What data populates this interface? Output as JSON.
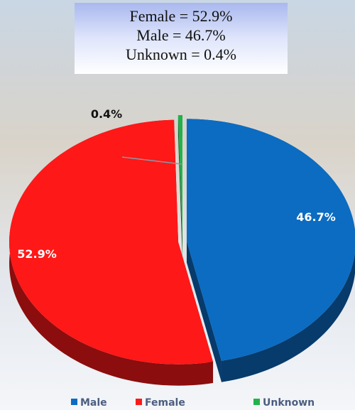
{
  "chart_data": {
    "type": "pie",
    "annotations": [
      "Female = 52.9%",
      "Male = 46.7%",
      "Unknown = 0.4%"
    ],
    "categories": [
      "Male",
      "Female",
      "Unknown"
    ],
    "values": [
      46.7,
      52.9,
      0.4
    ],
    "value_labels": [
      "46.7%",
      "52.9%",
      "0.4%"
    ],
    "colors": [
      "#0b6cc2",
      "#ff1818",
      "#22b24c"
    ],
    "legend": "bottom"
  }
}
